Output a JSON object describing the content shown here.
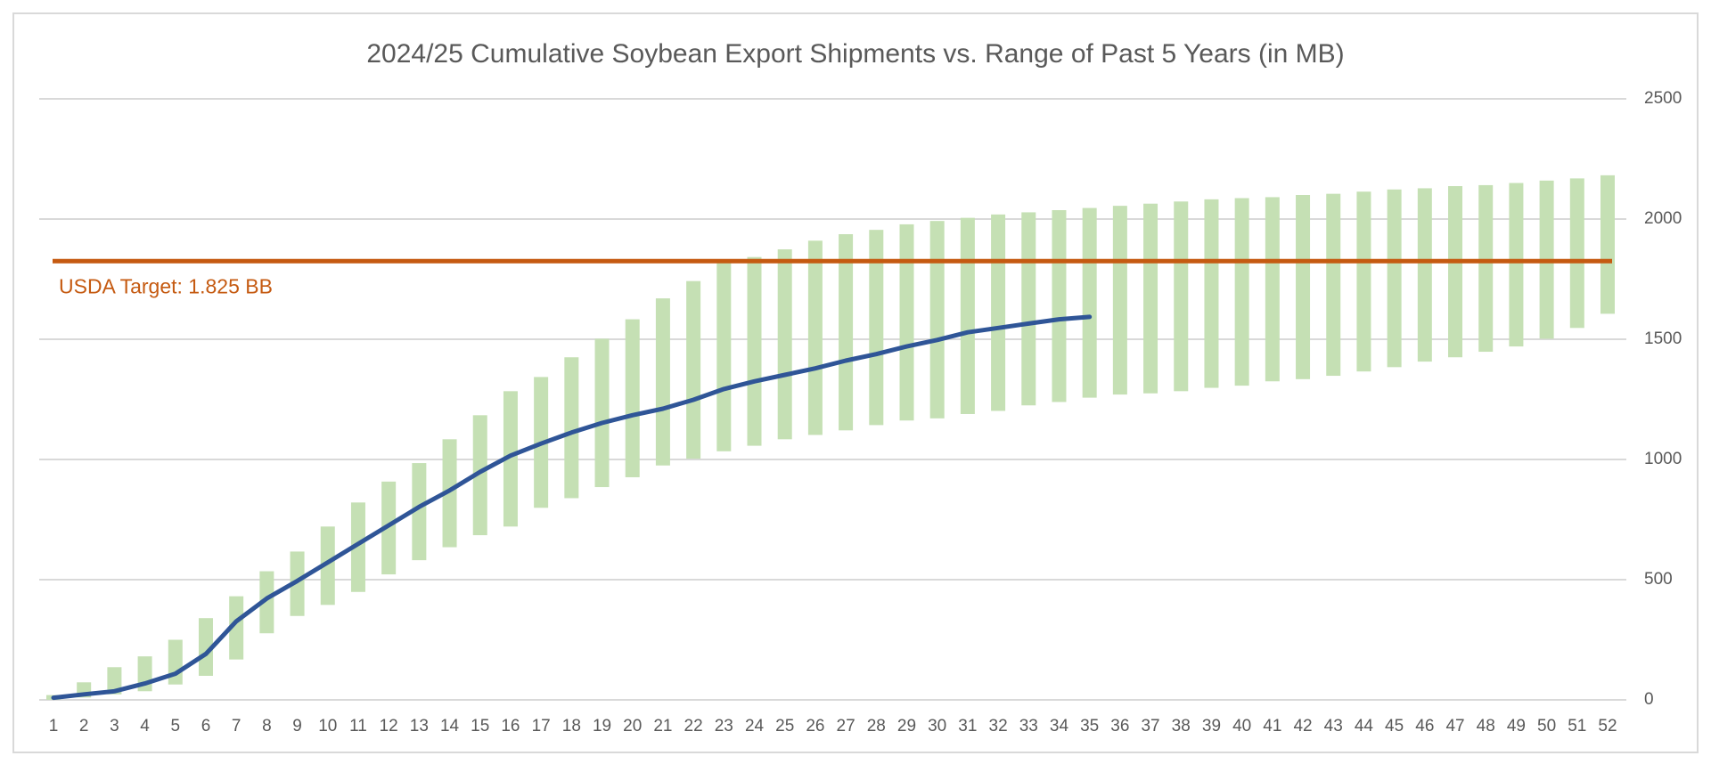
{
  "chart_data": {
    "type": "combo",
    "title": "2024/25 Cumulative Soybean Export Shipments vs. Range of Past 5 Years (in MB)",
    "categories": [
      "1",
      "2",
      "3",
      "4",
      "5",
      "6",
      "7",
      "8",
      "9",
      "10",
      "11",
      "12",
      "13",
      "14",
      "15",
      "16",
      "17",
      "18",
      "19",
      "20",
      "21",
      "22",
      "23",
      "24",
      "25",
      "26",
      "27",
      "28",
      "29",
      "30",
      "31",
      "32",
      "33",
      "34",
      "35",
      "36",
      "37",
      "38",
      "39",
      "40",
      "41",
      "42",
      "43",
      "44",
      "45",
      "46",
      "47",
      "48",
      "49",
      "50",
      "51",
      "52"
    ],
    "range": {
      "color": "#c5e0b4",
      "low": [
        0,
        10,
        23,
        36,
        64,
        100,
        168,
        277,
        349,
        395,
        449,
        522,
        581,
        635,
        685,
        721,
        799,
        839,
        885,
        926,
        975,
        1003,
        1034,
        1057,
        1084,
        1102,
        1121,
        1143,
        1162,
        1171,
        1189,
        1202,
        1225,
        1239,
        1257,
        1270,
        1275,
        1284,
        1298,
        1307,
        1325,
        1334,
        1348,
        1366,
        1384,
        1407,
        1425,
        1448,
        1470,
        1502,
        1547,
        1606
      ],
      "high": [
        20,
        73,
        136,
        181,
        250,
        340,
        431,
        535,
        617,
        721,
        821,
        908,
        985,
        1084,
        1184,
        1284,
        1343,
        1425,
        1502,
        1583,
        1670,
        1742,
        1819,
        1842,
        1874,
        1910,
        1937,
        1955,
        1978,
        1992,
        2005,
        2019,
        2028,
        2037,
        2046,
        2055,
        2064,
        2073,
        2082,
        2087,
        2091,
        2100,
        2105,
        2114,
        2123,
        2128,
        2137,
        2141,
        2150,
        2160,
        2169,
        2182
      ]
    },
    "series": [
      {
        "color": "#2f5597",
        "values": [
          9,
          23,
          36,
          68,
          109,
          191,
          327,
          422,
          495,
          572,
          649,
          726,
          803,
          871,
          948,
          1016,
          1066,
          1112,
          1152,
          1184,
          1211,
          1248,
          1293,
          1325,
          1352,
          1379,
          1411,
          1438,
          1470,
          1497,
          1529,
          1547,
          1565,
          1583,
          1593,
          null,
          null,
          null,
          null,
          null,
          null,
          null,
          null,
          null,
          null,
          null,
          null,
          null,
          null,
          null,
          null,
          null
        ]
      }
    ],
    "target": {
      "value": 1825,
      "label": "USDA Target: 1.825 BB",
      "color": "#c55a11"
    },
    "ylim": [
      0,
      2500
    ],
    "yticks": [
      0,
      500,
      1000,
      1500,
      2000,
      2500
    ],
    "y_axis_side": "right",
    "grid": true
  }
}
